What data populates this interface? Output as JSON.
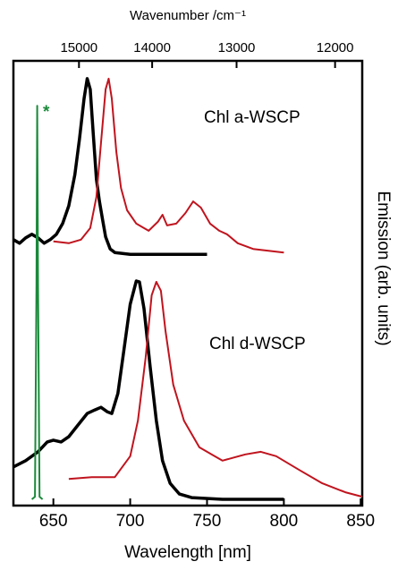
{
  "chart_data": {
    "type": "line",
    "xlabel": "Wavelength [nm]",
    "x2label": "Wavenumber /cm⁻¹",
    "ylabel_right": "Emission (arb. units)",
    "annotations": [
      "Chl a-WSCP",
      "Chl d-WSCP",
      "*"
    ],
    "xlim": [
      624,
      851
    ],
    "xticks": [
      650,
      700,
      750,
      800,
      850
    ],
    "x2ticks": [
      15000,
      14000,
      13000,
      12000
    ],
    "ylim": [
      0,
      1
    ],
    "series": [
      {
        "color": "#000000",
        "x": [
          624,
          628,
          632,
          636,
          640,
          644,
          648,
          652,
          656,
          660,
          664,
          667,
          670,
          672,
          674,
          676,
          678,
          680,
          682,
          684,
          687,
          690,
          700,
          720,
          750
        ],
        "values": [
          0.598,
          0.59,
          0.602,
          0.61,
          0.602,
          0.59,
          0.598,
          0.61,
          0.634,
          0.674,
          0.744,
          0.825,
          0.915,
          0.96,
          0.936,
          0.835,
          0.734,
          0.684,
          0.644,
          0.604,
          0.577,
          0.569,
          0.565,
          0.565,
          0.565
        ]
      },
      {
        "color": "#c0141e",
        "x": [
          650,
          660,
          668,
          674,
          678,
          681,
          684,
          686,
          688,
          691,
          694,
          698,
          704,
          712,
          718,
          721,
          724,
          730,
          736,
          741,
          746,
          752,
          758,
          763,
          770,
          780,
          790,
          800
        ],
        "values": [
          0.594,
          0.59,
          0.598,
          0.624,
          0.694,
          0.815,
          0.936,
          0.96,
          0.915,
          0.795,
          0.714,
          0.664,
          0.634,
          0.618,
          0.638,
          0.654,
          0.63,
          0.634,
          0.658,
          0.684,
          0.67,
          0.634,
          0.618,
          0.61,
          0.59,
          0.577,
          0.573,
          0.569
        ]
      },
      {
        "color": "#000000",
        "x": [
          624,
          632,
          640,
          646,
          650,
          655,
          660,
          666,
          672,
          677,
          681,
          685,
          688,
          692,
          696,
          700,
          704,
          706,
          709,
          713,
          717,
          721,
          726,
          732,
          740,
          760,
          800
        ],
        "values": [
          0.087,
          0.101,
          0.121,
          0.143,
          0.147,
          0.143,
          0.155,
          0.181,
          0.207,
          0.215,
          0.221,
          0.211,
          0.207,
          0.252,
          0.352,
          0.453,
          0.505,
          0.503,
          0.443,
          0.312,
          0.191,
          0.101,
          0.05,
          0.026,
          0.018,
          0.014,
          0.014
        ]
      },
      {
        "color": "#c0141e",
        "x": [
          660,
          675,
          690,
          700,
          705,
          710,
          714,
          717,
          720,
          723,
          728,
          735,
          745,
          760,
          775,
          785,
          795,
          810,
          825,
          840,
          851
        ],
        "values": [
          0.06,
          0.064,
          0.064,
          0.111,
          0.191,
          0.332,
          0.473,
          0.503,
          0.483,
          0.392,
          0.272,
          0.191,
          0.131,
          0.101,
          0.115,
          0.121,
          0.111,
          0.08,
          0.05,
          0.03,
          0.02
        ]
      },
      {
        "color": "#1a8a3a",
        "x": [
          636,
          638,
          639,
          639.5,
          640,
          641,
          643
        ],
        "values": [
          0.014,
          0.02,
          0.5,
          0.899,
          0.5,
          0.02,
          0.014
        ]
      }
    ]
  }
}
